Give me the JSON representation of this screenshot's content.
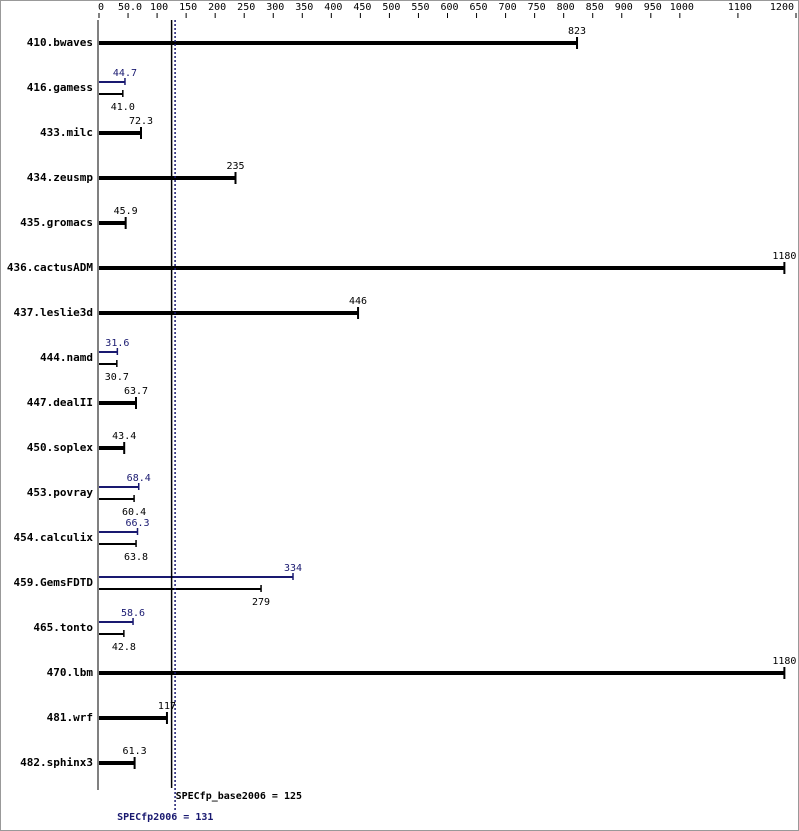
{
  "chart_data": {
    "type": "bar",
    "orientation": "horizontal",
    "categories": [
      "410.bwaves",
      "416.gamess",
      "433.milc",
      "434.zeusmp",
      "435.gromacs",
      "436.cactusADM",
      "437.leslie3d",
      "444.namd",
      "447.dealII",
      "450.soplex",
      "453.povray",
      "454.calculix",
      "459.GemsFDTD",
      "465.tonto",
      "470.lbm",
      "481.wrf",
      "482.sphinx3"
    ],
    "series": [
      {
        "color": "#000000",
        "values": [
          823,
          41.0,
          72.3,
          235,
          45.9,
          1180,
          446,
          30.7,
          63.7,
          43.4,
          60.4,
          63.8,
          279,
          42.8,
          1180,
          117,
          61.3
        ],
        "value_labels": [
          "823",
          "41.0",
          "72.3",
          "235",
          "45.9",
          "1180",
          "446",
          "30.7",
          "63.7",
          "43.4",
          "60.4",
          "63.8",
          "279",
          "42.8",
          "1180",
          "117",
          "61.3"
        ]
      },
      {
        "color": "#191970",
        "values": [
          null,
          44.7,
          null,
          null,
          null,
          null,
          null,
          31.6,
          null,
          null,
          68.4,
          66.3,
          334,
          58.6,
          null,
          null,
          null
        ],
        "value_labels": [
          null,
          "44.7",
          null,
          null,
          null,
          null,
          null,
          "31.6",
          null,
          null,
          "68.4",
          "66.3",
          "334",
          "58.6",
          null,
          null,
          null
        ]
      }
    ],
    "xlim": [
      0,
      1200
    ],
    "xticks": [
      0,
      {
        "value": 50,
        "label": "50.0"
      },
      100,
      150,
      200,
      250,
      300,
      350,
      400,
      450,
      500,
      550,
      600,
      650,
      700,
      750,
      800,
      850,
      900,
      950,
      1000,
      1100,
      1200
    ],
    "reference_lines": [
      {
        "value": 125,
        "label": "SPECfp_base2006 = 125",
        "color": "#000000"
      },
      {
        "value": 131,
        "label": "SPECfp2006 = 131",
        "color": "#191970"
      }
    ]
  }
}
